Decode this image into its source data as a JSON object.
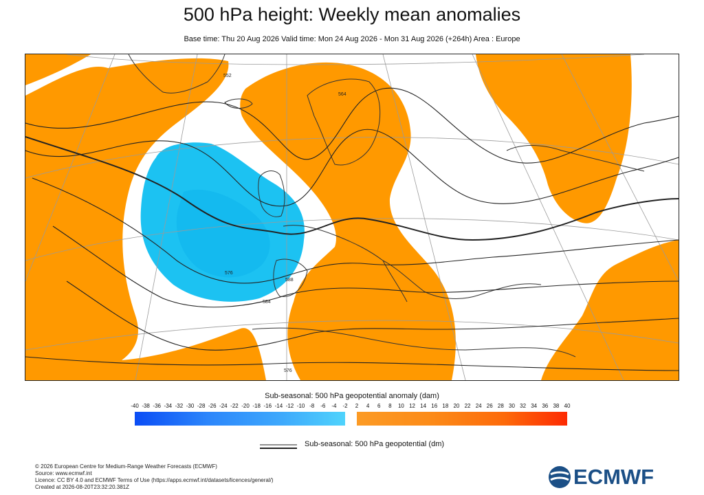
{
  "header": {
    "title": "500 hPa height: Weekly mean anomalies",
    "subtitle": "Base time: Thu 20 Aug 2026 Valid time: Mon 24 Aug 2026 - Mon 31 Aug 2026 (+264h) Area : Europe"
  },
  "map": {
    "area": "Europe",
    "colors": {
      "positive": "#ff9900",
      "negative": "#1cc2f2",
      "contour": "#222222",
      "coast": "#333333"
    },
    "contour_labels": [
      "552",
      "564",
      "576",
      "584",
      "588",
      "576"
    ]
  },
  "colorbar": {
    "title": "Sub-seasonal: 500 hPa geopotential anomaly (dam)",
    "ticks_neg": [
      "-40",
      "-38",
      "-36",
      "-34",
      "-32",
      "-30",
      "-28",
      "-26",
      "-24",
      "-22",
      "-20",
      "-18",
      "-16",
      "-14",
      "-12",
      "-10",
      "-8",
      "-6",
      "-4",
      "-2"
    ],
    "ticks_pos": [
      "2",
      "4",
      "6",
      "8",
      "10",
      "12",
      "14",
      "16",
      "18",
      "20",
      "22",
      "24",
      "26",
      "28",
      "30",
      "32",
      "34",
      "36",
      "38",
      "40"
    ],
    "neg_colors": [
      "#0b4df5",
      "#2c86fb",
      "#3ea9fc",
      "#4fd3fc"
    ],
    "pos_colors": [
      "#fc9b25",
      "#fc8b18",
      "#fd6a0a",
      "#fd2a02"
    ]
  },
  "legend": {
    "line_label": "Sub-seasonal: 500 hPa geopotential (dm)"
  },
  "footer": {
    "lines": [
      "© 2026 European Centre for Medium-Range Weather Forecasts (ECMWF)",
      "Source: www.ecmwf.int",
      "Licence: CC BY 4.0 and ECMWF Terms of Use (https://apps.ecmwf.int/datasets/licences/general/)",
      "Created at 2026-08-20T23:32:20.381Z"
    ]
  },
  "logo": {
    "text": "ECMWF",
    "color": "#1b4f86"
  }
}
